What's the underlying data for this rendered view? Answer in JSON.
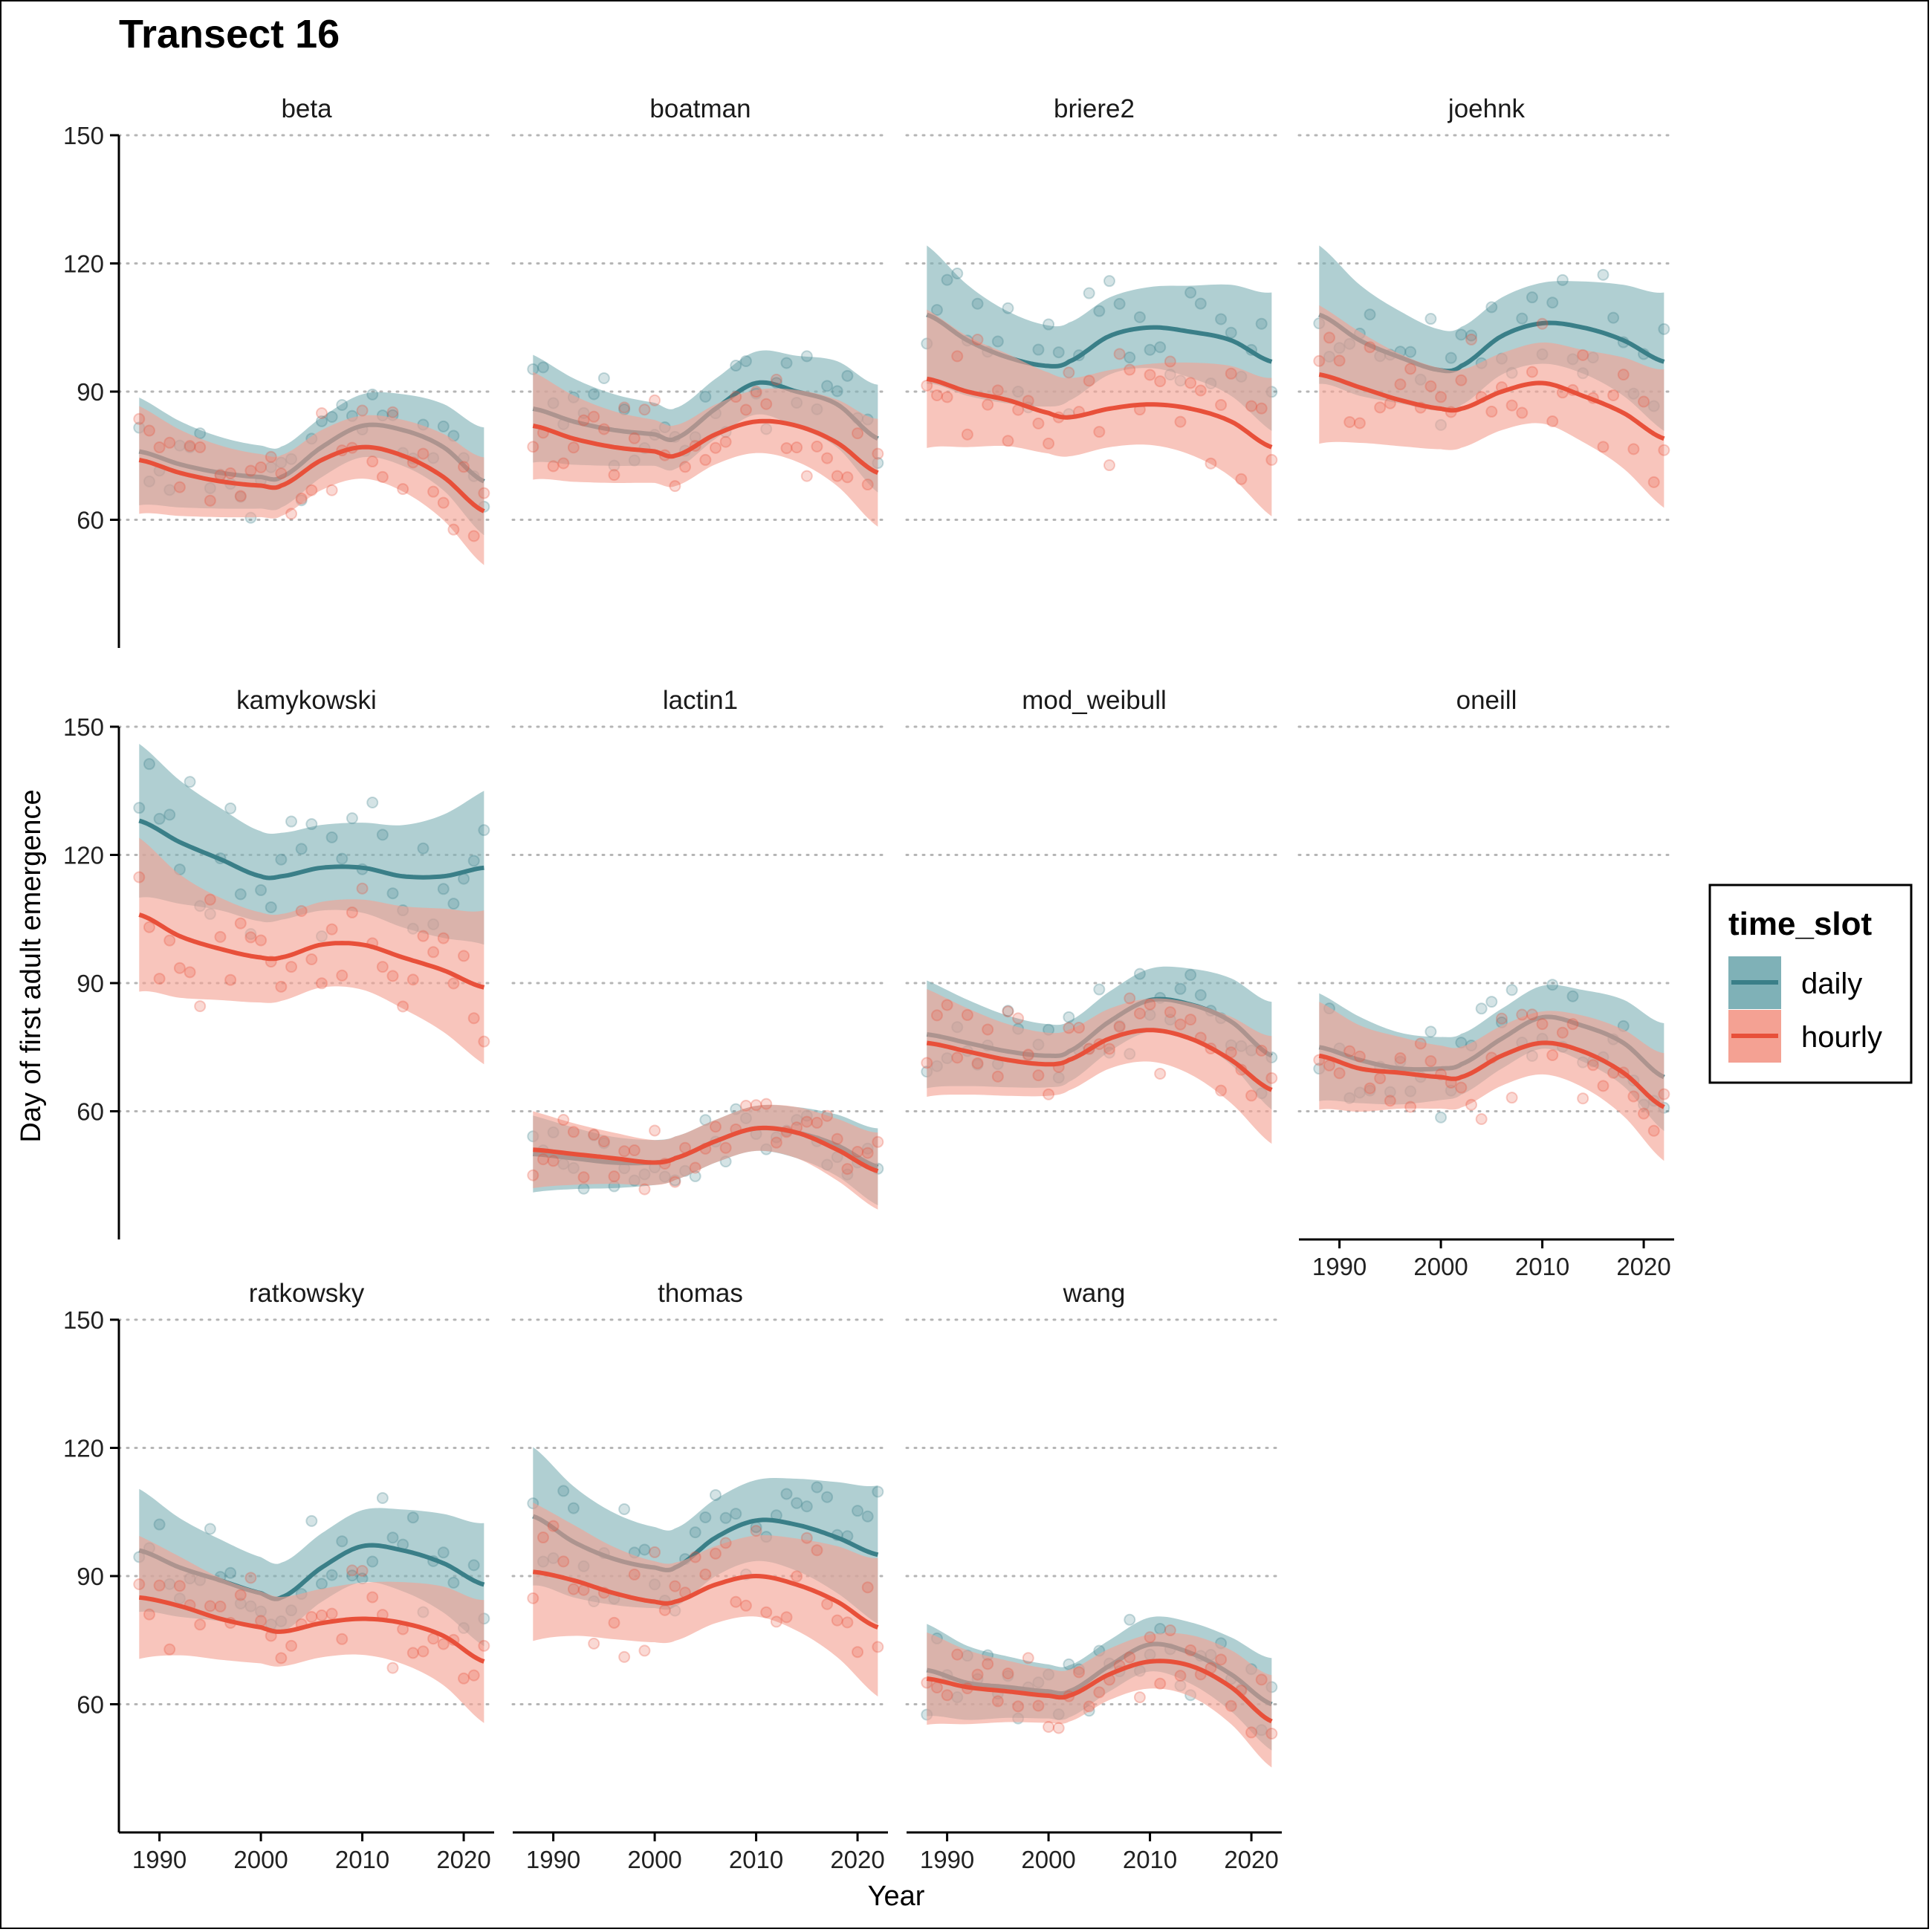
{
  "chart_data": {
    "type": "scatter",
    "title": "Transect 16",
    "xlabel": "Year",
    "ylabel": "Day of first adult emergence",
    "xlim": [
      1986,
      2023
    ],
    "ylim": [
      30,
      150
    ],
    "xticks": [
      1990,
      2000,
      2010,
      2020
    ],
    "yticks": [
      60,
      90,
      120,
      150
    ],
    "grid": "horizontal dotted",
    "legend": {
      "title": "time_slot",
      "position": "right",
      "entries": [
        {
          "name": "daily",
          "color": "#3a7f88",
          "fill": "#7fb1b7"
        },
        {
          "name": "hourly",
          "color": "#e8503a",
          "fill": "#f4a193"
        }
      ]
    },
    "panels": [
      {
        "name": "beta",
        "daily": {
          "smooth": [
            [
              1988,
              76
            ],
            [
              1992,
              73
            ],
            [
              1996,
              71
            ],
            [
              2000,
              70
            ],
            [
              2002,
              70
            ],
            [
              2006,
              77
            ],
            [
              2010,
              82
            ],
            [
              2014,
              81
            ],
            [
              2018,
              77
            ],
            [
              2022,
              69
            ]
          ]
        },
        "hourly": {
          "smooth": [
            [
              1988,
              74
            ],
            [
              1992,
              71
            ],
            [
              1996,
              69
            ],
            [
              2000,
              68
            ],
            [
              2002,
              68
            ],
            [
              2006,
              74
            ],
            [
              2010,
              77
            ],
            [
              2014,
              75
            ],
            [
              2018,
              70
            ],
            [
              2022,
              62
            ]
          ]
        },
        "band": 7
      },
      {
        "name": "boatman",
        "daily": {
          "smooth": [
            [
              1988,
              86
            ],
            [
              1992,
              83
            ],
            [
              1996,
              81
            ],
            [
              2000,
              80
            ],
            [
              2002,
              79
            ],
            [
              2006,
              86
            ],
            [
              2010,
              92
            ],
            [
              2014,
              90
            ],
            [
              2018,
              87
            ],
            [
              2022,
              79
            ]
          ]
        },
        "hourly": {
          "smooth": [
            [
              1988,
              82
            ],
            [
              1992,
              79
            ],
            [
              1996,
              77
            ],
            [
              2000,
              76
            ],
            [
              2002,
              75
            ],
            [
              2006,
              80
            ],
            [
              2010,
              83
            ],
            [
              2014,
              82
            ],
            [
              2018,
              78
            ],
            [
              2022,
              71
            ]
          ]
        },
        "band": 7
      },
      {
        "name": "briere2",
        "daily": {
          "smooth": [
            [
              1988,
              108
            ],
            [
              1992,
              102
            ],
            [
              1996,
              98
            ],
            [
              2000,
              96
            ],
            [
              2002,
              97
            ],
            [
              2006,
              103
            ],
            [
              2010,
              105
            ],
            [
              2014,
              104
            ],
            [
              2018,
              102
            ],
            [
              2022,
              97
            ]
          ]
        },
        "hourly": {
          "smooth": [
            [
              1988,
              93
            ],
            [
              1992,
              90
            ],
            [
              1996,
              88
            ],
            [
              2000,
              85
            ],
            [
              2002,
              84
            ],
            [
              2006,
              86
            ],
            [
              2010,
              87
            ],
            [
              2014,
              86
            ],
            [
              2018,
              83
            ],
            [
              2022,
              77
            ]
          ]
        },
        "band": 9
      },
      {
        "name": "joehnk",
        "daily": {
          "smooth": [
            [
              1988,
              108
            ],
            [
              1992,
              102
            ],
            [
              1996,
              98
            ],
            [
              2000,
              95
            ],
            [
              2002,
              96
            ],
            [
              2006,
              103
            ],
            [
              2010,
              106
            ],
            [
              2014,
              105
            ],
            [
              2018,
              102
            ],
            [
              2022,
              97
            ]
          ]
        },
        "hourly": {
          "smooth": [
            [
              1988,
              94
            ],
            [
              1992,
              91
            ],
            [
              1996,
              88
            ],
            [
              2000,
              86
            ],
            [
              2002,
              86
            ],
            [
              2006,
              90
            ],
            [
              2010,
              92
            ],
            [
              2014,
              89
            ],
            [
              2018,
              85
            ],
            [
              2022,
              79
            ]
          ]
        },
        "band": 9
      },
      {
        "name": "kamykowski",
        "daily": {
          "smooth": [
            [
              1988,
              128
            ],
            [
              1992,
              123
            ],
            [
              1996,
              119
            ],
            [
              2000,
              115
            ],
            [
              2002,
              115
            ],
            [
              2006,
              117
            ],
            [
              2010,
              117
            ],
            [
              2014,
              115
            ],
            [
              2018,
              115
            ],
            [
              2022,
              117
            ]
          ]
        },
        "hourly": {
          "smooth": [
            [
              1988,
              106
            ],
            [
              1992,
              101
            ],
            [
              1996,
              98
            ],
            [
              2000,
              96
            ],
            [
              2002,
              96
            ],
            [
              2006,
              99
            ],
            [
              2010,
              99
            ],
            [
              2014,
              96
            ],
            [
              2018,
              93
            ],
            [
              2022,
              89
            ]
          ]
        },
        "band": 10
      },
      {
        "name": "lactin1",
        "daily": {
          "smooth": [
            [
              1988,
              50
            ],
            [
              1992,
              49
            ],
            [
              1996,
              48
            ],
            [
              2000,
              48
            ],
            [
              2002,
              49
            ],
            [
              2006,
              53
            ],
            [
              2010,
              56
            ],
            [
              2014,
              55
            ],
            [
              2018,
              52
            ],
            [
              2022,
              47
            ]
          ]
        },
        "hourly": {
          "smooth": [
            [
              1988,
              51
            ],
            [
              1992,
              50
            ],
            [
              1996,
              49
            ],
            [
              2000,
              48
            ],
            [
              2002,
              49
            ],
            [
              2006,
              53
            ],
            [
              2010,
              56
            ],
            [
              2014,
              55
            ],
            [
              2018,
              51
            ],
            [
              2022,
              46
            ]
          ]
        },
        "band": 5
      },
      {
        "name": "mod_weibull",
        "daily": {
          "smooth": [
            [
              1988,
              78
            ],
            [
              1992,
              76
            ],
            [
              1996,
              74
            ],
            [
              2000,
              73
            ],
            [
              2002,
              74
            ],
            [
              2006,
              81
            ],
            [
              2010,
              86
            ],
            [
              2014,
              85
            ],
            [
              2018,
              81
            ],
            [
              2022,
              73
            ]
          ]
        },
        "hourly": {
          "smooth": [
            [
              1988,
              76
            ],
            [
              1992,
              74
            ],
            [
              1996,
              72
            ],
            [
              2000,
              71
            ],
            [
              2002,
              72
            ],
            [
              2006,
              77
            ],
            [
              2010,
              79
            ],
            [
              2014,
              77
            ],
            [
              2018,
              72
            ],
            [
              2022,
              65
            ]
          ]
        },
        "band": 7
      },
      {
        "name": "oneill",
        "daily": {
          "smooth": [
            [
              1988,
              75
            ],
            [
              1992,
              72
            ],
            [
              1996,
              70
            ],
            [
              2000,
              70
            ],
            [
              2002,
              71
            ],
            [
              2006,
              77
            ],
            [
              2010,
              82
            ],
            [
              2014,
              80
            ],
            [
              2018,
              76
            ],
            [
              2022,
              68
            ]
          ]
        },
        "hourly": {
          "smooth": [
            [
              1988,
              73
            ],
            [
              1992,
              70
            ],
            [
              1996,
              69
            ],
            [
              2000,
              68
            ],
            [
              2002,
              68
            ],
            [
              2006,
              73
            ],
            [
              2010,
              76
            ],
            [
              2014,
              74
            ],
            [
              2018,
              69
            ],
            [
              2022,
              61
            ]
          ]
        },
        "band": 7
      },
      {
        "name": "ratkowsky",
        "daily": {
          "smooth": [
            [
              1988,
              96
            ],
            [
              1992,
              92
            ],
            [
              1996,
              89
            ],
            [
              2000,
              86
            ],
            [
              2002,
              85
            ],
            [
              2006,
              92
            ],
            [
              2010,
              97
            ],
            [
              2014,
              96
            ],
            [
              2018,
              93
            ],
            [
              2022,
              88
            ]
          ]
        },
        "hourly": {
          "smooth": [
            [
              1988,
              85
            ],
            [
              1992,
              83
            ],
            [
              1996,
              80
            ],
            [
              2000,
              78
            ],
            [
              2002,
              77
            ],
            [
              2006,
              79
            ],
            [
              2010,
              80
            ],
            [
              2014,
              79
            ],
            [
              2018,
              76
            ],
            [
              2022,
              70
            ]
          ]
        },
        "band": 8
      },
      {
        "name": "thomas",
        "daily": {
          "smooth": [
            [
              1988,
              104
            ],
            [
              1992,
              98
            ],
            [
              1996,
              94
            ],
            [
              2000,
              92
            ],
            [
              2002,
              92
            ],
            [
              2006,
              99
            ],
            [
              2010,
              103
            ],
            [
              2014,
              102
            ],
            [
              2018,
              99
            ],
            [
              2022,
              95
            ]
          ]
        },
        "hourly": {
          "smooth": [
            [
              1988,
              91
            ],
            [
              1992,
              89
            ],
            [
              1996,
              86
            ],
            [
              2000,
              84
            ],
            [
              2002,
              84
            ],
            [
              2006,
              88
            ],
            [
              2010,
              90
            ],
            [
              2014,
              88
            ],
            [
              2018,
              84
            ],
            [
              2022,
              78
            ]
          ]
        },
        "band": 9
      },
      {
        "name": "wang",
        "daily": {
          "smooth": [
            [
              1988,
              68
            ],
            [
              1992,
              65
            ],
            [
              1996,
              64
            ],
            [
              2000,
              63
            ],
            [
              2002,
              63
            ],
            [
              2006,
              69
            ],
            [
              2010,
              74
            ],
            [
              2014,
              72
            ],
            [
              2018,
              67
            ],
            [
              2022,
              60
            ]
          ]
        },
        "hourly": {
          "smooth": [
            [
              1988,
              66
            ],
            [
              1992,
              64
            ],
            [
              1996,
              63
            ],
            [
              2000,
              62
            ],
            [
              2002,
              62
            ],
            [
              2006,
              67
            ],
            [
              2010,
              70
            ],
            [
              2014,
              69
            ],
            [
              2018,
              64
            ],
            [
              2022,
              56
            ]
          ]
        },
        "band": 6
      }
    ]
  }
}
